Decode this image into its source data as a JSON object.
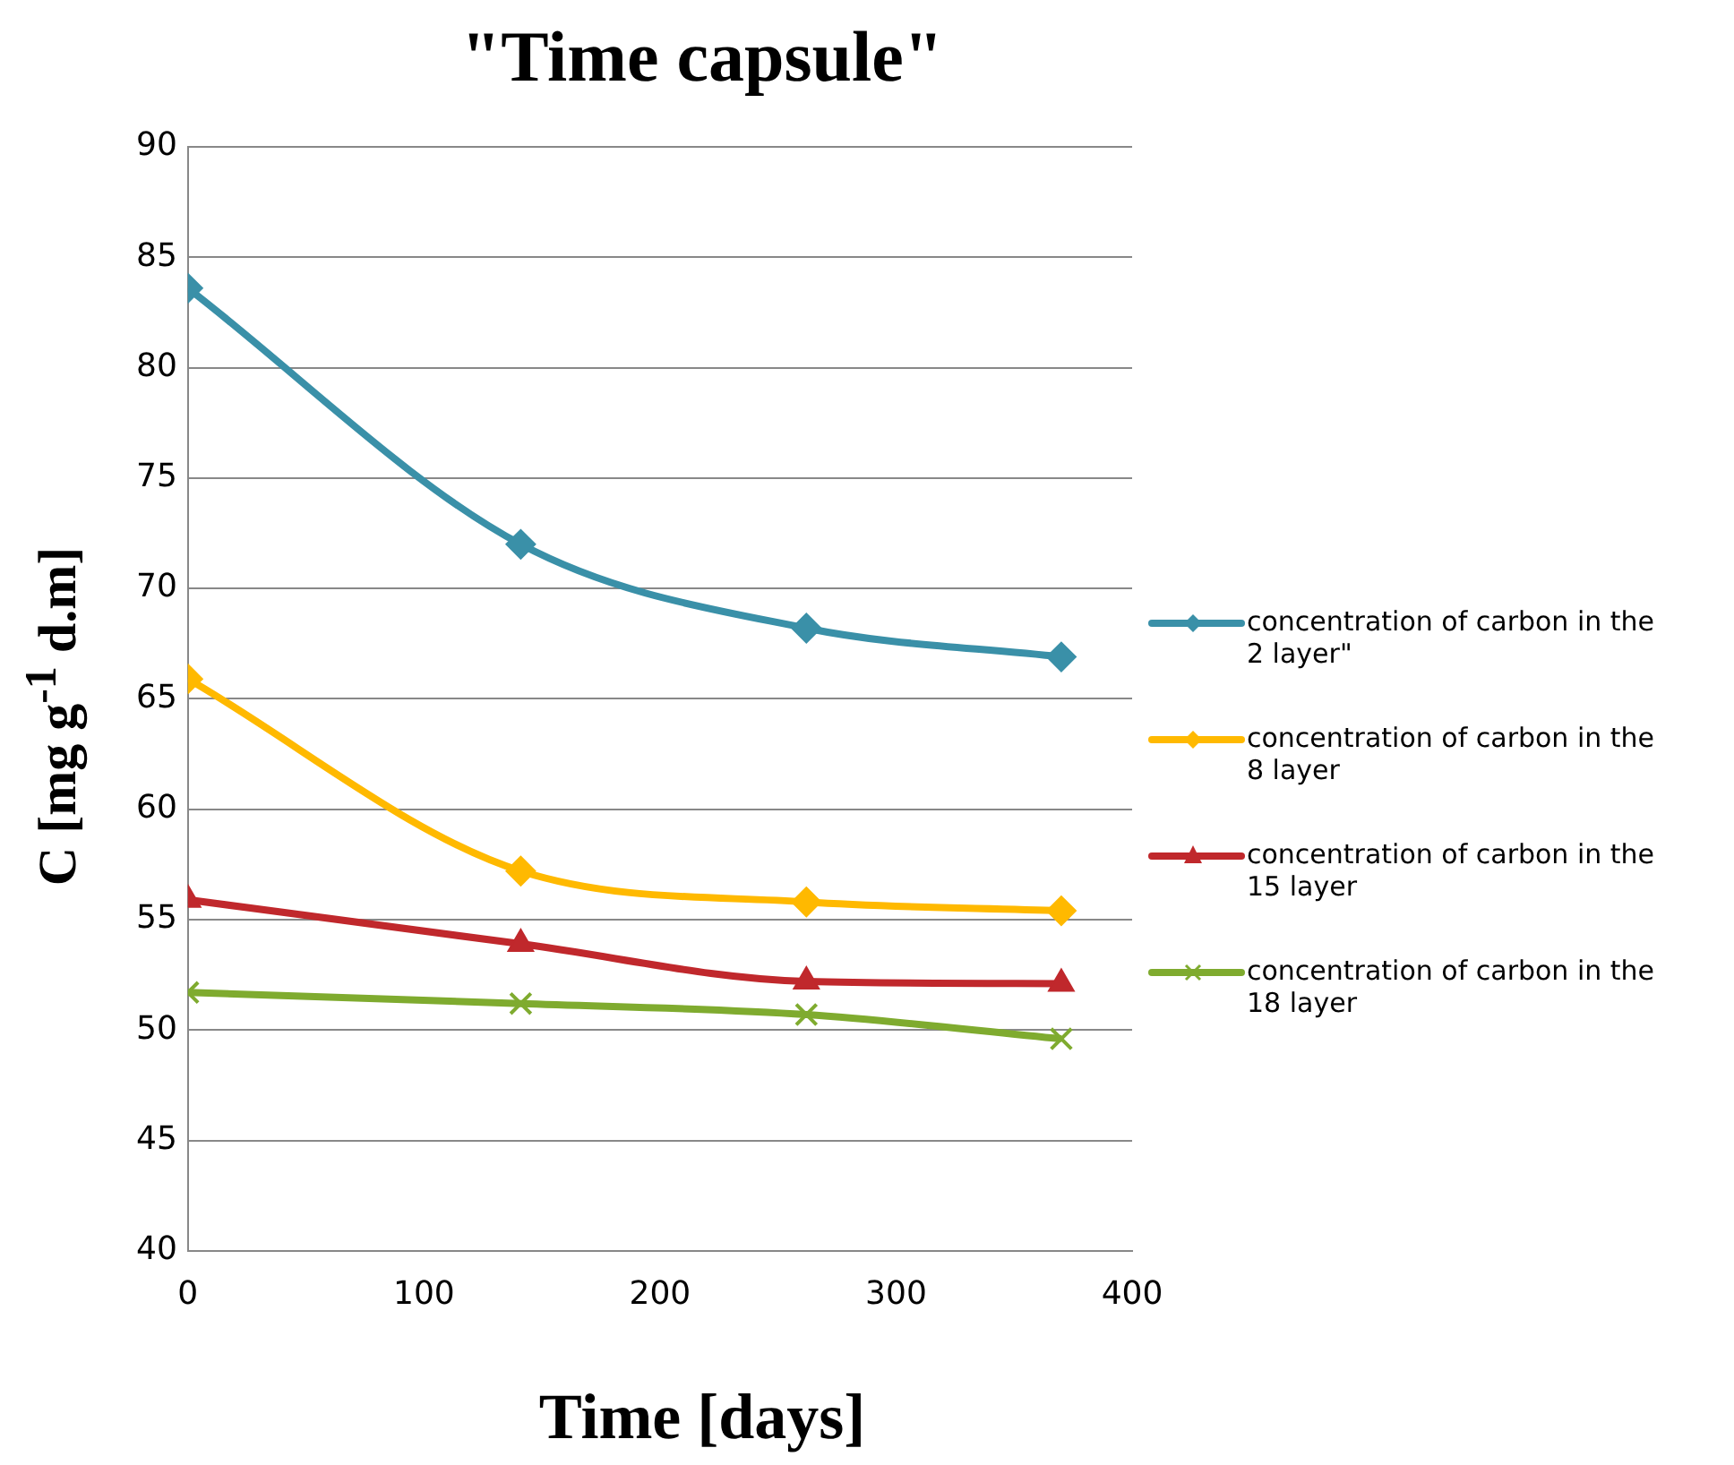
{
  "chart_data": {
    "type": "line",
    "title": "\"Time capsule\"",
    "xlabel": "Time [days]",
    "ylabel": "C [mg g$^{-1}$ d.m]",
    "x": [
      0,
      141,
      262,
      370
    ],
    "xlim": [
      0,
      400
    ],
    "xticks": [
      0,
      100,
      200,
      300,
      400
    ],
    "ylim": [
      40,
      90
    ],
    "yticks": [
      40,
      45,
      50,
      55,
      60,
      65,
      70,
      75,
      80,
      85,
      90
    ],
    "grid": "y",
    "legend": "right",
    "line_style": "solid",
    "series": [
      {
        "name": "concentration of carbon in the 2 layer\"",
        "color": "#3a90a8",
        "marker": "diamond",
        "values": [
          83.6,
          72.0,
          68.2,
          66.9
        ]
      },
      {
        "name": "concentration of carbon in the 8 layer",
        "color": "#ffb900",
        "marker": "diamond",
        "values": [
          65.9,
          57.2,
          55.8,
          55.4
        ]
      },
      {
        "name": "concentration of carbon in the 15 layer",
        "color": "#c0282c",
        "marker": "triangle",
        "values": [
          55.9,
          53.9,
          52.2,
          52.1
        ]
      },
      {
        "name": "concentration of carbon in the 18 layer",
        "color": "#7fab2f",
        "marker": "cross",
        "values": [
          51.7,
          51.2,
          50.7,
          49.6
        ]
      }
    ]
  }
}
